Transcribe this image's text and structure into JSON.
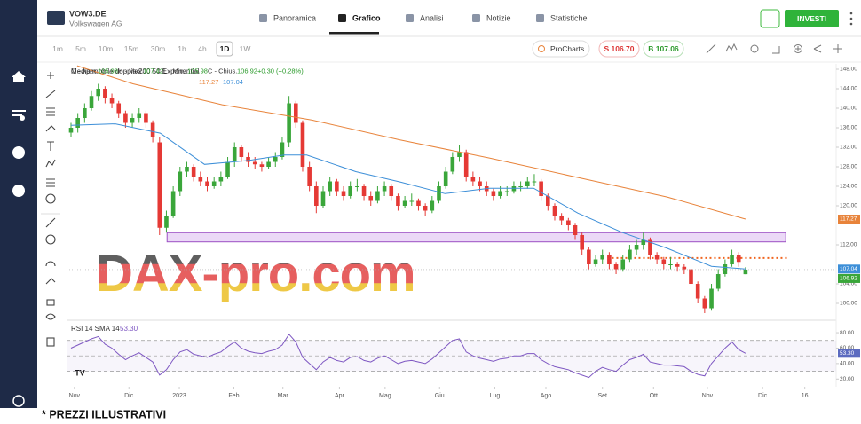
{
  "header": {
    "symbol": "VOW3.DE",
    "name": "Volkswagen AG",
    "tabs": [
      "Panoramica",
      "Grafico",
      "Analisi",
      "Notizie",
      "Statistiche"
    ],
    "active_tab": 1,
    "invest": "INVESTI"
  },
  "toolbar": {
    "timeframes": [
      "1m",
      "5m",
      "10m",
      "15m",
      "30m",
      "1h",
      "4h",
      "1D",
      "1W"
    ],
    "active_timeframe": 7,
    "procharts": "ProCharts",
    "sell": "S 106.70",
    "buy": "B 107.06"
  },
  "chart_data": {
    "type": "candlestick",
    "legend_labels": [
      "O - Aper.",
      "H - Max.",
      "L - Min.",
      "C - Chius."
    ],
    "change": "+0.30 (+0.28%)",
    "ma_legend": "Media mobile doppia 200 50 Exponential",
    "up_color": "#3aa63a",
    "down_color": "#e53935",
    "candles": [
      [
        135,
        137,
        134,
        136
      ],
      [
        136,
        139,
        135,
        138
      ],
      [
        138,
        141,
        137,
        140
      ],
      [
        140,
        143.5,
        139.5,
        142.5
      ],
      [
        142.5,
        145,
        141.5,
        144
      ],
      [
        144,
        144.5,
        141,
        142
      ],
      [
        142,
        143,
        140,
        141
      ],
      [
        141,
        141.5,
        138,
        139
      ],
      [
        139,
        139.5,
        136,
        137
      ],
      [
        137,
        139,
        136,
        138
      ],
      [
        138,
        140,
        137,
        139
      ],
      [
        139,
        139.5,
        136,
        137
      ],
      [
        137,
        137.5,
        133,
        134
      ],
      [
        133,
        134,
        114,
        115.5
      ],
      [
        115.5,
        119,
        114.5,
        118
      ],
      [
        118,
        124,
        117.5,
        123
      ],
      [
        123,
        128,
        122,
        127
      ],
      [
        127,
        129,
        126,
        128
      ],
      [
        128,
        128.5,
        125,
        126
      ],
      [
        126,
        127,
        124,
        125
      ],
      [
        125,
        126,
        123,
        124
      ],
      [
        124,
        126,
        123.5,
        125
      ],
      [
        125,
        127,
        124,
        126
      ],
      [
        126,
        130,
        125.5,
        129
      ],
      [
        129,
        133,
        128,
        132
      ],
      [
        132,
        132.5,
        129,
        130
      ],
      [
        130,
        131,
        128,
        129
      ],
      [
        129,
        130,
        127.5,
        128.5
      ],
      [
        128.5,
        129,
        127,
        128
      ],
      [
        128,
        130,
        127.5,
        129
      ],
      [
        129,
        131,
        128,
        130
      ],
      [
        130,
        134,
        129.5,
        133
      ],
      [
        133,
        142.5,
        132,
        141
      ],
      [
        141,
        141.5,
        136,
        137
      ],
      [
        137,
        137.5,
        127,
        128
      ],
      [
        128,
        129,
        123,
        124
      ],
      [
        124,
        125,
        118.5,
        120
      ],
      [
        120,
        124,
        119.5,
        123
      ],
      [
        123,
        126,
        122,
        125
      ],
      [
        125,
        125.5,
        122,
        123
      ],
      [
        123,
        124,
        121,
        122
      ],
      [
        122,
        125,
        121.5,
        124
      ],
      [
        124,
        125.5,
        123,
        124
      ],
      [
        124,
        124.5,
        121,
        122
      ],
      [
        122,
        123,
        120,
        121
      ],
      [
        121,
        124,
        120.5,
        123
      ],
      [
        123,
        125,
        122,
        124
      ],
      [
        124,
        124.5,
        121,
        122
      ],
      [
        122,
        122.5,
        119,
        120
      ],
      [
        120,
        122,
        119.5,
        121
      ],
      [
        121,
        122.5,
        120,
        121
      ],
      [
        121,
        121.5,
        119,
        120
      ],
      [
        120,
        120.5,
        118,
        119
      ],
      [
        119,
        122,
        118.5,
        121
      ],
      [
        121,
        125,
        120.5,
        124
      ],
      [
        124,
        128,
        123.5,
        127
      ],
      [
        127,
        131,
        126.5,
        130
      ],
      [
        130,
        132.5,
        129,
        131
      ],
      [
        131,
        131.5,
        125,
        126
      ],
      [
        126,
        127,
        124,
        125
      ],
      [
        125,
        126,
        123,
        124
      ],
      [
        124,
        125,
        122,
        123
      ],
      [
        123,
        123.5,
        121,
        122
      ],
      [
        122,
        124,
        121.5,
        123
      ],
      [
        123,
        124,
        122,
        123
      ],
      [
        123,
        125,
        122.5,
        124
      ],
      [
        124,
        125,
        123,
        124
      ],
      [
        124,
        126,
        123.5,
        125
      ],
      [
        125,
        126.5,
        124,
        125
      ],
      [
        125,
        125.5,
        121,
        122
      ],
      [
        122,
        122.5,
        119,
        120
      ],
      [
        120,
        120.5,
        117,
        118
      ],
      [
        118,
        118.5,
        116,
        117
      ],
      [
        117,
        117.5,
        115,
        116
      ],
      [
        116,
        116.5,
        113,
        114
      ],
      [
        114,
        114.5,
        110,
        111
      ],
      [
        111,
        111.5,
        107,
        108
      ],
      [
        108,
        110,
        107.5,
        109
      ],
      [
        109,
        111,
        108,
        110
      ],
      [
        110,
        110.5,
        107,
        108
      ],
      [
        108,
        108.5,
        106,
        107
      ],
      [
        107,
        110,
        106.5,
        109
      ],
      [
        109,
        112,
        108.5,
        111
      ],
      [
        111,
        113,
        110,
        112
      ],
      [
        112,
        114.5,
        111,
        113
      ],
      [
        113,
        113.5,
        109,
        110
      ],
      [
        110,
        110.5,
        108,
        109
      ],
      [
        109,
        109.5,
        107,
        108
      ],
      [
        108,
        109.5,
        107,
        108
      ],
      [
        108,
        108.5,
        106.5,
        107.5
      ],
      [
        107.5,
        108,
        106,
        107
      ],
      [
        107,
        107.5,
        103,
        104
      ],
      [
        104,
        104.5,
        100,
        101
      ],
      [
        101,
        101.5,
        98,
        99
      ],
      [
        99,
        104,
        98.5,
        103
      ],
      [
        103,
        107,
        102.5,
        106
      ],
      [
        106,
        109,
        105.5,
        108
      ],
      [
        108,
        111,
        107.5,
        110
      ],
      [
        110,
        110.5,
        107.5,
        108.5
      ],
      [
        105.98,
        107.42,
        105.98,
        106.92
      ]
    ],
    "ma": [
      {
        "color": "#e8833a",
        "x": [
          0.9,
          9.1,
          22.2,
          35.3,
          48.3,
          61.4,
          74.4,
          87.5,
          99
        ],
        "values": [
          148.7,
          145,
          140.7,
          137.6,
          133.5,
          129.8,
          125.8,
          121.8,
          117.27
        ]
      },
      {
        "color": "#3d8fd8",
        "x": [
          0,
          6.5,
          13.1,
          19.6,
          26.1,
          31.3,
          34.6,
          41.8,
          48.3,
          54.9,
          61.4,
          67.9,
          74.4,
          81,
          87.5,
          94,
          99
        ],
        "values": [
          136.5,
          136.8,
          134.9,
          128.5,
          129.3,
          130.4,
          130.4,
          127,
          124.9,
          122.5,
          123.6,
          123.6,
          118.5,
          114.5,
          111.3,
          107.6,
          107.04
        ]
      }
    ],
    "zone": {
      "x": [
        14.1,
        104.9
      ],
      "y": [
        112.6,
        114.5
      ]
    },
    "support": {
      "x": [
        79.4,
        105.1
      ],
      "value": 109.3
    },
    "xlim": [
      -0.65,
      112.3
    ],
    "ylim": [
      96.73,
      149.09
    ],
    "xticks": [
      {
        "value": 0.5,
        "label": "Nov"
      },
      {
        "value": 8.5,
        "label": "Dic"
      },
      {
        "value": 15.9,
        "label": "2023"
      },
      {
        "value": 23.9,
        "label": "Feb"
      },
      {
        "value": 31.1,
        "label": "Mar"
      },
      {
        "value": 39.4,
        "label": "Apr"
      },
      {
        "value": 46.1,
        "label": "Mag"
      },
      {
        "value": 54.1,
        "label": "Giu"
      },
      {
        "value": 62.2,
        "label": "Lug"
      },
      {
        "value": 69.7,
        "label": "Ago"
      },
      {
        "value": 78,
        "label": "Set"
      },
      {
        "value": 85.5,
        "label": "Ott"
      },
      {
        "value": 93.4,
        "label": "Nov"
      },
      {
        "value": 101.5,
        "label": "Dic"
      },
      {
        "value": 107.7,
        "label": "16"
      }
    ],
    "yticks": [
      {
        "value": 100,
        "label": "100.00"
      },
      {
        "value": 104,
        "label": "104.00"
      },
      {
        "value": 112,
        "label": "112.00"
      },
      {
        "value": 120,
        "label": "120.00"
      },
      {
        "value": 124,
        "label": "124.00"
      },
      {
        "value": 128,
        "label": "128.00"
      },
      {
        "value": 132,
        "label": "132.00"
      },
      {
        "value": 136,
        "label": "136.00"
      },
      {
        "value": 140,
        "label": "140.00"
      },
      {
        "value": 144,
        "label": "144.00"
      },
      {
        "value": 148,
        "label": "148.00"
      }
    ],
    "rsi": {
      "label": "RSI 14 SMA 14",
      "color": "#7e57c2",
      "last_label": "53.30",
      "ylim": [
        10,
        95
      ],
      "bands": [
        70,
        50,
        30
      ],
      "yticks": [
        {
          "value": 20,
          "label": "20.00"
        },
        {
          "value": 40,
          "label": "40.00"
        },
        {
          "value": 60,
          "label": "60.00"
        },
        {
          "value": 80,
          "label": "80.00"
        }
      ],
      "values": [
        60,
        64,
        68,
        72,
        75,
        65,
        60,
        52,
        45,
        50,
        54,
        48,
        42,
        25,
        32,
        45,
        55,
        58,
        52,
        50,
        48,
        52,
        55,
        62,
        68,
        60,
        56,
        54,
        53,
        56,
        58,
        64,
        78,
        68,
        48,
        40,
        32,
        42,
        48,
        44,
        42,
        48,
        49,
        44,
        42,
        47,
        50,
        45,
        40,
        43,
        44,
        42,
        40,
        46,
        54,
        62,
        70,
        72,
        55,
        50,
        47,
        45,
        43,
        46,
        47,
        50,
        50,
        53,
        53,
        45,
        40,
        36,
        34,
        32,
        28,
        25,
        22,
        30,
        35,
        32,
        30,
        38,
        45,
        48,
        52,
        42,
        40,
        38,
        38,
        37,
        36,
        30,
        26,
        24,
        40,
        50,
        60,
        68,
        58,
        53.3
      ]
    },
    "watermark": "DAX-pro.com"
  },
  "footer": "* PREZZI ILLUSTRATIVI"
}
